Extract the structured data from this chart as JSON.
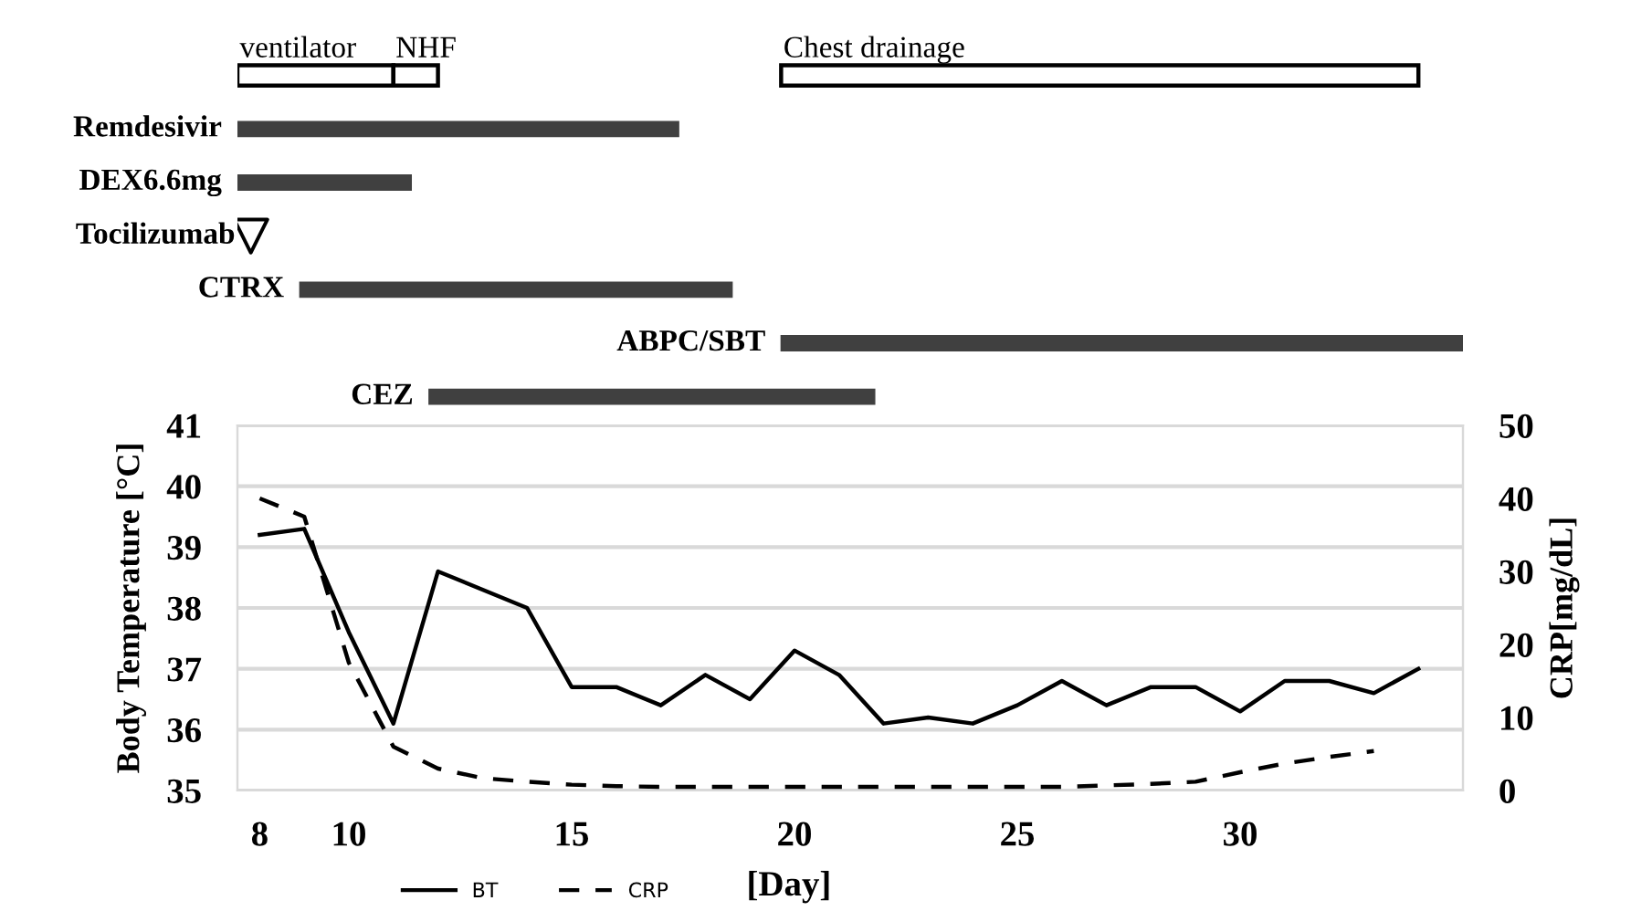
{
  "chart_data": [
    {
      "type": "bar",
      "orientation": "horizontal",
      "tick_labels": false,
      "xlim": [
        7.5,
        35.0
      ],
      "xticks": [
        8,
        10,
        15,
        20,
        25,
        30
      ],
      "categories": [
        null,
        "Remdesivir",
        "DEX6.6mg",
        "Tocilizumab",
        "CTRX",
        "ABPC/SBT",
        "CEZ"
      ],
      "series": [
        {
          "name": "ventilator",
          "color": "#ffffff",
          "base": [
            7.5,
            null,
            null,
            null,
            null,
            null,
            null
          ],
          "values": [
            3.5,
            null,
            null,
            null,
            null,
            null,
            null
          ]
        },
        {
          "name": "NHF",
          "color": "#ffffff",
          "base": [
            11.0,
            null,
            null,
            null,
            null,
            null,
            null
          ],
          "values": [
            1.0,
            null,
            null,
            null,
            null,
            null,
            null
          ]
        },
        {
          "name": "Chest drainage",
          "color": "#ffffff",
          "base": [
            19.7,
            null,
            null,
            null,
            null,
            null,
            null
          ],
          "values": [
            14.3,
            null,
            null,
            null,
            null,
            null,
            null
          ]
        },
        {
          "color": "#404040",
          "base": [
            null,
            7.5,
            7.5,
            null,
            8.9,
            19.7,
            11.8
          ],
          "values": [
            null,
            9.9,
            3.9,
            null,
            9.7,
            15.3,
            10.0
          ]
        },
        {
          "type": "scatter",
          "marker": "triangle",
          "color": "#ffffff",
          "values": [
            null,
            null,
            null,
            7.8,
            null,
            null,
            null
          ]
        }
      ]
    },
    {
      "type": "line",
      "xlabel": "[Day]",
      "ylabel": "Body Temperature [°C]",
      "y2label": "CRP[mg/dL]",
      "x": [
        8,
        9,
        10,
        11,
        12,
        13,
        14,
        15,
        16,
        17,
        18,
        19,
        20,
        21,
        22,
        23,
        24,
        25,
        26,
        27,
        28,
        29,
        30,
        31,
        32,
        33,
        34
      ],
      "xlim": [
        7.5,
        35.0
      ],
      "xticks": [
        8,
        10,
        15,
        20,
        25,
        30
      ],
      "ylim": [
        35,
        41
      ],
      "yticks": [
        35,
        36,
        37,
        38,
        39,
        40,
        41
      ],
      "y2lim": [
        0,
        50
      ],
      "y2ticks": [
        0,
        10,
        20,
        30,
        40,
        50
      ],
      "grid": "y",
      "legend": "bottom left",
      "series": [
        {
          "name": "BT",
          "color": "#000000",
          "line_style": "solid",
          "values": [
            39.2,
            39.3,
            37.6,
            36.1,
            38.6,
            38.3,
            38.0,
            36.7,
            36.7,
            36.4,
            36.9,
            36.5,
            37.3,
            36.9,
            36.1,
            36.2,
            36.1,
            36.4,
            36.8,
            36.4,
            36.7,
            36.7,
            36.3,
            36.8,
            36.8,
            36.6,
            37.0
          ]
        },
        {
          "name": "CRP",
          "color": "#000000",
          "line_style": "dashed",
          "axis": "y2",
          "values": [
            40,
            37.5,
            17.5,
            6,
            3,
            1.7,
            1.2,
            0.8,
            0.6,
            0.5,
            0.5,
            0.5,
            0.5,
            0.5,
            0.5,
            0.5,
            0.5,
            0.5,
            0.5,
            0.7,
            0.9,
            1.2,
            2.5,
            3.7,
            4.6,
            5.4,
            null
          ]
        }
      ]
    }
  ]
}
